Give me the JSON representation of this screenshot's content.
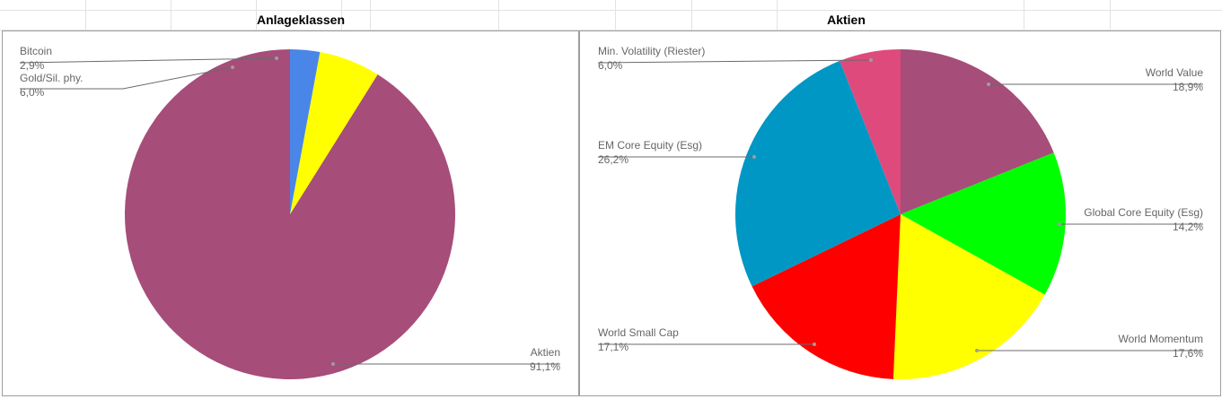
{
  "sheet": {
    "headers": [
      "Anlageklassen",
      "Aktien"
    ]
  },
  "chart_data": [
    {
      "type": "pie",
      "title": "",
      "start_angle_deg": 0,
      "direction": "counterclockwise",
      "slices": [
        {
          "label": "Aktien",
          "value": 91.1,
          "value_label": "91,1%",
          "color": "#a64d79",
          "label_side": "right"
        },
        {
          "label": "Gold/Sil. phy.",
          "value": 6.0,
          "value_label": "6,0%",
          "color": "#ffff00",
          "label_side": "left"
        },
        {
          "label": "Bitcoin",
          "value": 2.9,
          "value_label": "2,9%",
          "color": "#4a86e8",
          "label_side": "left"
        }
      ]
    },
    {
      "type": "pie",
      "title": "",
      "start_angle_deg": 0,
      "direction": "clockwise",
      "slices": [
        {
          "label": "World Value",
          "value": 18.9,
          "value_label": "18,9%",
          "color": "#a64d79",
          "label_side": "right"
        },
        {
          "label": "Global Core Equity (Esg)",
          "value": 14.2,
          "value_label": "14,2%",
          "color": "#00ff00",
          "label_side": "right"
        },
        {
          "label": "World Momentum",
          "value": 17.6,
          "value_label": "17,6%",
          "color": "#ffff00",
          "label_side": "right"
        },
        {
          "label": "World Small Cap",
          "value": 17.1,
          "value_label": "17,1%",
          "color": "#ff0000",
          "label_side": "left"
        },
        {
          "label": "EM Core Equity (Esg)",
          "value": 26.2,
          "value_label": "26,2%",
          "color": "#0097c4",
          "label_side": "left"
        },
        {
          "label": "Min. Volatility (Riester)",
          "value": 6.0,
          "value_label": "6,0%",
          "color": "#de4a7c",
          "label_side": "left"
        }
      ]
    }
  ]
}
